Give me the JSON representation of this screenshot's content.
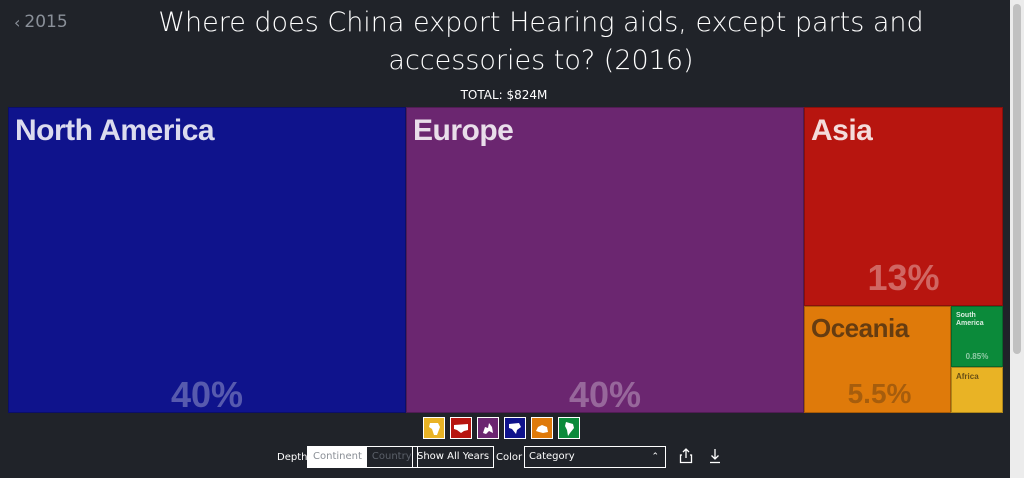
{
  "nav": {
    "back_label": "2015"
  },
  "header": {
    "title": "Where does China export Hearing aids, except parts and accessories to? (2016)",
    "total": "TOTAL: $824M"
  },
  "chart_data": {
    "type": "treemap",
    "title": "Where does China export Hearing aids, except parts and accessories to? (2016)",
    "total": "TOTAL: $824M",
    "items": [
      {
        "name": "North America",
        "share": 40,
        "share_label": "40%",
        "color": "#0f138c"
      },
      {
        "name": "Europe",
        "share": 40,
        "share_label": "40%",
        "color": "#6b2670"
      },
      {
        "name": "Asia",
        "share": 13,
        "share_label": "13%",
        "color": "#b7150f"
      },
      {
        "name": "Oceania",
        "share": 5.5,
        "share_label": "5.5%",
        "color": "#df7a0a"
      },
      {
        "name": "South America",
        "share": 0.85,
        "share_label": "0.85%",
        "color": "#0b8a3a"
      },
      {
        "name": "Africa",
        "share": 0.65,
        "share_label": "",
        "color": "#e9b325"
      }
    ]
  },
  "region_icons": [
    {
      "name": "africa-icon",
      "color": "#e9b325"
    },
    {
      "name": "asia-icon",
      "color": "#b7150f"
    },
    {
      "name": "europe-icon",
      "color": "#6b2670"
    },
    {
      "name": "north-america-icon",
      "color": "#0f138c"
    },
    {
      "name": "oceania-icon",
      "color": "#df7a0a"
    },
    {
      "name": "south-america-icon",
      "color": "#0b8a3a"
    }
  ],
  "controls": {
    "depth_label": "Depth",
    "depth_options": [
      "Continent",
      "Country"
    ],
    "show_all_years": "Show All Years",
    "color_label": "Color",
    "color_value": "Category"
  }
}
